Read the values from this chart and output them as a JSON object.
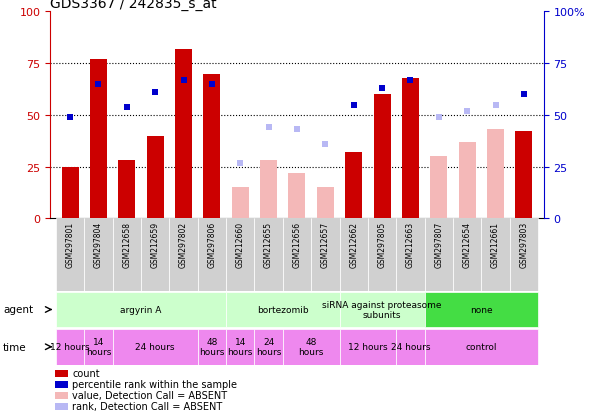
{
  "title": "GDS3367 / 242835_s_at",
  "samples": [
    "GSM297801",
    "GSM297804",
    "GSM212658",
    "GSM212659",
    "GSM297802",
    "GSM297806",
    "GSM212660",
    "GSM212655",
    "GSM212656",
    "GSM212657",
    "GSM212662",
    "GSM297805",
    "GSM212663",
    "GSM297807",
    "GSM212654",
    "GSM212661",
    "GSM297803"
  ],
  "bar_values": [
    25,
    77,
    28,
    40,
    82,
    70,
    0,
    0,
    0,
    0,
    32,
    60,
    68,
    0,
    0,
    0,
    42
  ],
  "bar_absent": [
    false,
    false,
    false,
    false,
    false,
    false,
    true,
    true,
    true,
    true,
    false,
    false,
    false,
    true,
    true,
    true,
    false
  ],
  "bar_absent_values": [
    0,
    0,
    0,
    0,
    0,
    0,
    15,
    28,
    22,
    15,
    0,
    0,
    0,
    30,
    37,
    43,
    0
  ],
  "rank_values": [
    49,
    65,
    54,
    61,
    67,
    65,
    27,
    44,
    43,
    36,
    55,
    63,
    67,
    49,
    52,
    55,
    60
  ],
  "rank_absent": [
    false,
    false,
    false,
    false,
    false,
    false,
    true,
    true,
    true,
    true,
    false,
    false,
    false,
    true,
    true,
    true,
    false
  ],
  "color_bar_present": "#cc0000",
  "color_bar_absent": "#f4b8b8",
  "color_rank_present": "#0000cc",
  "color_rank_absent": "#b8b8f4",
  "agent_defs": [
    [
      0,
      6,
      "argyrin A",
      "#ccffcc"
    ],
    [
      6,
      10,
      "bortezomib",
      "#ccffcc"
    ],
    [
      10,
      13,
      "siRNA against proteasome\nsubunits",
      "#ccffcc"
    ],
    [
      13,
      17,
      "none",
      "#44dd44"
    ]
  ],
  "time_defs": [
    [
      0,
      1,
      "12 hours",
      "#ee88ee"
    ],
    [
      1,
      2,
      "14\nhours",
      "#ee88ee"
    ],
    [
      2,
      5,
      "24 hours",
      "#ee88ee"
    ],
    [
      5,
      6,
      "48\nhours",
      "#ee88ee"
    ],
    [
      6,
      7,
      "14\nhours",
      "#ee88ee"
    ],
    [
      7,
      8,
      "24\nhours",
      "#ee88ee"
    ],
    [
      8,
      10,
      "48\nhours",
      "#ee88ee"
    ],
    [
      10,
      12,
      "12 hours",
      "#ee88ee"
    ],
    [
      12,
      13,
      "24 hours",
      "#ee88ee"
    ],
    [
      13,
      17,
      "control",
      "#ee88ee"
    ]
  ],
  "legend_items": [
    {
      "label": "count",
      "color": "#cc0000"
    },
    {
      "label": "percentile rank within the sample",
      "color": "#0000cc"
    },
    {
      "label": "value, Detection Call = ABSENT",
      "color": "#f4b8b8"
    },
    {
      "label": "rank, Detection Call = ABSENT",
      "color": "#b8b8f4"
    }
  ],
  "fig_width": 5.91,
  "fig_height": 4.14,
  "dpi": 100
}
